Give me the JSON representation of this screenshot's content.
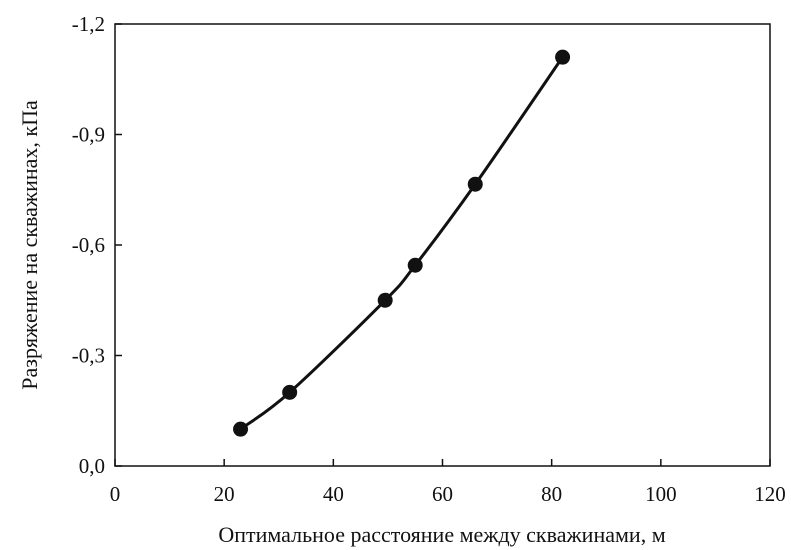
{
  "chart_data": {
    "type": "scatter",
    "xlabel": "Оптимальное расстояние между скважинами, м",
    "ylabel": "Разряжение на скважинах, кПа",
    "xlim": [
      0,
      120
    ],
    "ylim": [
      0.0,
      -1.2
    ],
    "x_ticks": [
      "0",
      "20",
      "40",
      "60",
      "80",
      "100",
      "120"
    ],
    "y_ticks": [
      "0,0",
      "-0,3",
      "-0,6",
      "-0,9",
      "-1,2"
    ],
    "grid": false,
    "legend": "none",
    "marker_color": "#111111",
    "line_color": "#111111",
    "series": [
      {
        "x": [
          23,
          32,
          49.5,
          55,
          66,
          82
        ],
        "y": [
          -0.1,
          -0.2,
          -0.45,
          -0.545,
          -0.765,
          -1.11
        ],
        "trendline": "smooth"
      }
    ]
  }
}
